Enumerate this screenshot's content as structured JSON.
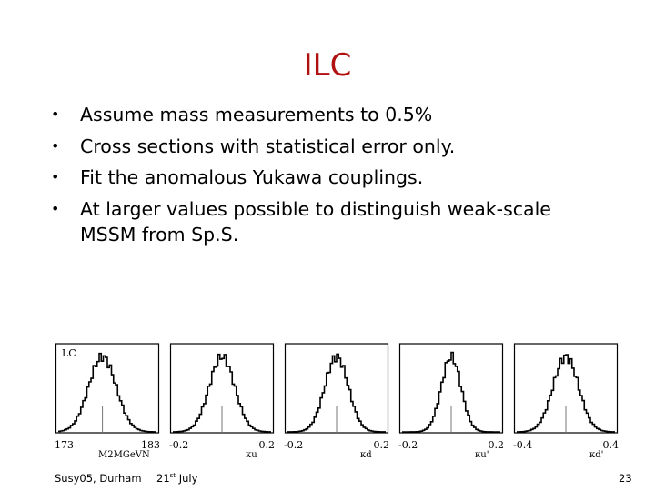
{
  "slide": {
    "title": "ILC",
    "bullet_marker": "•",
    "bullets": [
      "Assume mass measurements to 0.5%",
      "Cross sections with statistical error only.",
      "Fit the anomalous Yukawa couplings.",
      "At larger values possible to distinguish weak-scale MSSM from Sp.S."
    ],
    "footer": {
      "event": "Susy05, Durham",
      "date_day": "21",
      "date_suffix": "st",
      "date_month": "July",
      "page_number": "23"
    }
  },
  "histograms": {
    "corner_label": "LC",
    "panels": [
      {
        "xmin_label": "173",
        "xmax_label": "183",
        "xname": "M2MGeVN",
        "peak": 0.45,
        "width": 0.14
      },
      {
        "xmin_label": "-0.2",
        "xmax_label": "0.2",
        "xname": "κu",
        "peak": 0.5,
        "width": 0.13
      },
      {
        "xmin_label": "-0.2",
        "xmax_label": "0.2",
        "xname": "κd",
        "peak": 0.5,
        "width": 0.12
      },
      {
        "xmin_label": "-0.2",
        "xmax_label": "0.2",
        "xname": "κu'",
        "peak": 0.5,
        "width": 0.1
      },
      {
        "xmin_label": "-0.4",
        "xmax_label": "0.4",
        "xname": "κd'",
        "peak": 0.5,
        "width": 0.13
      }
    ]
  }
}
